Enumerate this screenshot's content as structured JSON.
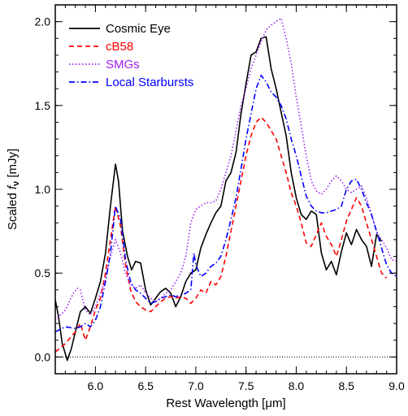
{
  "chart_data": {
    "type": "line",
    "xlabel": "Rest Wavelength [μm]",
    "ylabel": "Scaled f_ν [mJy]",
    "xlim": [
      5.6,
      9.0
    ],
    "ylim": [
      -0.1,
      2.1
    ],
    "x_ticks": [
      6.0,
      6.5,
      7.0,
      7.5,
      8.0,
      8.5,
      9.0
    ],
    "x_tick_labels": [
      "6.0",
      "6.5",
      "7.0",
      "7.5",
      "8.0",
      "8.5",
      "9.0"
    ],
    "y_ticks": [
      0.0,
      0.5,
      1.0,
      1.5,
      2.0
    ],
    "y_tick_labels": [
      "0.0",
      "0.5",
      "1.0",
      "1.5",
      "2.0"
    ],
    "grid": false,
    "legend_position": "top-left",
    "zero_line": 0.0,
    "series": [
      {
        "name": "Cosmic Eye",
        "color": "#000000",
        "style": "solid",
        "x": [
          5.6,
          5.63,
          5.67,
          5.72,
          5.76,
          5.8,
          5.85,
          5.9,
          5.95,
          6.0,
          6.05,
          6.1,
          6.15,
          6.2,
          6.23,
          6.27,
          6.32,
          6.36,
          6.4,
          6.45,
          6.5,
          6.55,
          6.6,
          6.65,
          6.7,
          6.75,
          6.8,
          6.85,
          6.9,
          6.95,
          7.0,
          7.05,
          7.1,
          7.15,
          7.2,
          7.25,
          7.3,
          7.35,
          7.4,
          7.45,
          7.5,
          7.55,
          7.6,
          7.65,
          7.7,
          7.75,
          7.8,
          7.85,
          7.9,
          7.95,
          8.0,
          8.05,
          8.1,
          8.15,
          8.2,
          8.25,
          8.3,
          8.35,
          8.4,
          8.45,
          8.5,
          8.55,
          8.6,
          8.65,
          8.7,
          8.75,
          8.8,
          8.85
        ],
        "y": [
          0.34,
          0.25,
          0.08,
          -0.02,
          0.05,
          0.15,
          0.27,
          0.3,
          0.26,
          0.35,
          0.45,
          0.62,
          0.9,
          1.15,
          1.05,
          0.75,
          0.6,
          0.52,
          0.57,
          0.56,
          0.4,
          0.31,
          0.35,
          0.39,
          0.41,
          0.38,
          0.3,
          0.36,
          0.45,
          0.5,
          0.52,
          0.65,
          0.73,
          0.8,
          0.86,
          0.9,
          1.05,
          1.1,
          1.22,
          1.45,
          1.63,
          1.8,
          1.82,
          1.9,
          1.91,
          1.72,
          1.6,
          1.46,
          1.32,
          1.1,
          0.95,
          0.85,
          0.82,
          0.87,
          0.85,
          0.62,
          0.52,
          0.57,
          0.49,
          0.63,
          0.74,
          0.67,
          0.76,
          0.7,
          0.66,
          0.54,
          0.73,
          0.69
        ]
      },
      {
        "name": "cB58",
        "color": "#ff0000",
        "style": "dashed",
        "x": [
          5.6,
          5.7,
          5.8,
          5.85,
          5.9,
          5.95,
          6.0,
          6.05,
          6.1,
          6.15,
          6.2,
          6.25,
          6.3,
          6.35,
          6.4,
          6.45,
          6.5,
          6.55,
          6.6,
          6.65,
          6.7,
          6.75,
          6.8,
          6.85,
          6.9,
          6.95,
          7.0,
          7.05,
          7.1,
          7.15,
          7.2,
          7.25,
          7.3,
          7.35,
          7.4,
          7.45,
          7.5,
          7.55,
          7.6,
          7.65,
          7.7,
          7.75,
          7.8,
          7.85,
          7.9,
          7.95,
          8.0,
          8.05,
          8.1,
          8.15,
          8.2,
          8.25,
          8.3,
          8.35,
          8.4,
          8.45,
          8.5,
          8.55,
          8.6,
          8.65,
          8.7,
          8.75,
          8.8,
          8.85,
          8.9
        ],
        "y": [
          0.03,
          0.08,
          0.15,
          0.2,
          0.1,
          0.18,
          0.28,
          0.35,
          0.5,
          0.7,
          0.9,
          0.78,
          0.55,
          0.4,
          0.33,
          0.3,
          0.28,
          0.27,
          0.3,
          0.33,
          0.35,
          0.36,
          0.35,
          0.36,
          0.35,
          0.32,
          0.35,
          0.4,
          0.38,
          0.45,
          0.43,
          0.48,
          0.6,
          0.75,
          0.9,
          1.05,
          1.2,
          1.32,
          1.4,
          1.43,
          1.4,
          1.35,
          1.3,
          1.2,
          1.1,
          0.98,
          0.9,
          0.8,
          0.68,
          0.66,
          0.73,
          0.8,
          0.72,
          0.67,
          0.6,
          0.7,
          0.81,
          0.88,
          0.95,
          0.9,
          0.8,
          0.7,
          0.6,
          0.5,
          0.47
        ]
      },
      {
        "name": "SMGs",
        "color": "#a020f0",
        "style": "dotted",
        "x": [
          5.6,
          5.7,
          5.78,
          5.82,
          5.85,
          5.9,
          5.95,
          6.0,
          6.05,
          6.1,
          6.15,
          6.2,
          6.25,
          6.3,
          6.35,
          6.4,
          6.45,
          6.5,
          6.55,
          6.6,
          6.65,
          6.7,
          6.75,
          6.8,
          6.85,
          6.9,
          6.95,
          7.0,
          7.05,
          7.1,
          7.15,
          7.2,
          7.25,
          7.3,
          7.35,
          7.4,
          7.45,
          7.5,
          7.55,
          7.6,
          7.65,
          7.7,
          7.75,
          7.8,
          7.85,
          7.9,
          7.95,
          8.0,
          8.05,
          8.1,
          8.15,
          8.2,
          8.25,
          8.3,
          8.35,
          8.4,
          8.45,
          8.5,
          8.55,
          8.6,
          8.65,
          8.7,
          8.75,
          8.8,
          8.85,
          8.9,
          8.95,
          9.0
        ],
        "y": [
          0.22,
          0.28,
          0.38,
          0.41,
          0.4,
          0.28,
          0.25,
          0.3,
          0.38,
          0.46,
          0.6,
          0.7,
          0.62,
          0.5,
          0.43,
          0.41,
          0.43,
          0.38,
          0.35,
          0.33,
          0.35,
          0.38,
          0.4,
          0.45,
          0.5,
          0.6,
          0.8,
          0.88,
          0.9,
          0.92,
          0.92,
          0.93,
          1.0,
          1.1,
          1.2,
          1.35,
          1.5,
          1.6,
          1.72,
          1.8,
          1.88,
          1.95,
          1.98,
          2.0,
          2.02,
          1.9,
          1.75,
          1.55,
          1.38,
          1.2,
          1.05,
          0.99,
          0.97,
          1.0,
          1.05,
          1.08,
          1.05,
          1.0,
          0.98,
          1.0,
          1.02,
          0.95,
          0.85,
          0.75,
          0.7,
          0.65,
          0.58,
          0.57
        ]
      },
      {
        "name": "Local Starbursts",
        "color": "#0000ff",
        "style": "dashdot",
        "x": [
          5.6,
          5.7,
          5.8,
          5.85,
          5.9,
          5.95,
          6.0,
          6.05,
          6.1,
          6.15,
          6.2,
          6.25,
          6.3,
          6.35,
          6.4,
          6.45,
          6.5,
          6.55,
          6.6,
          6.65,
          6.7,
          6.75,
          6.8,
          6.85,
          6.9,
          6.95,
          6.98,
          7.0,
          7.05,
          7.1,
          7.15,
          7.2,
          7.25,
          7.3,
          7.35,
          7.4,
          7.45,
          7.5,
          7.55,
          7.6,
          7.65,
          7.7,
          7.75,
          7.8,
          7.85,
          7.9,
          7.95,
          8.0,
          8.05,
          8.1,
          8.15,
          8.2,
          8.25,
          8.3,
          8.35,
          8.4,
          8.45,
          8.5,
          8.55,
          8.6,
          8.65,
          8.7,
          8.75,
          8.8,
          8.85,
          8.9,
          8.95,
          9.0
        ],
        "y": [
          0.15,
          0.18,
          0.17,
          0.18,
          0.2,
          0.18,
          0.22,
          0.3,
          0.45,
          0.62,
          0.9,
          0.82,
          0.58,
          0.45,
          0.4,
          0.38,
          0.35,
          0.32,
          0.33,
          0.35,
          0.36,
          0.37,
          0.36,
          0.37,
          0.38,
          0.4,
          0.62,
          0.55,
          0.48,
          0.5,
          0.54,
          0.56,
          0.6,
          0.7,
          0.82,
          0.95,
          1.12,
          1.3,
          1.45,
          1.6,
          1.68,
          1.64,
          1.58,
          1.55,
          1.5,
          1.42,
          1.3,
          1.2,
          1.08,
          0.96,
          0.9,
          0.87,
          0.86,
          0.86,
          0.87,
          0.88,
          0.9,
          1.0,
          1.05,
          1.06,
          1.0,
          0.92,
          0.85,
          0.75,
          0.65,
          0.55,
          0.5,
          0.48
        ]
      }
    ]
  }
}
